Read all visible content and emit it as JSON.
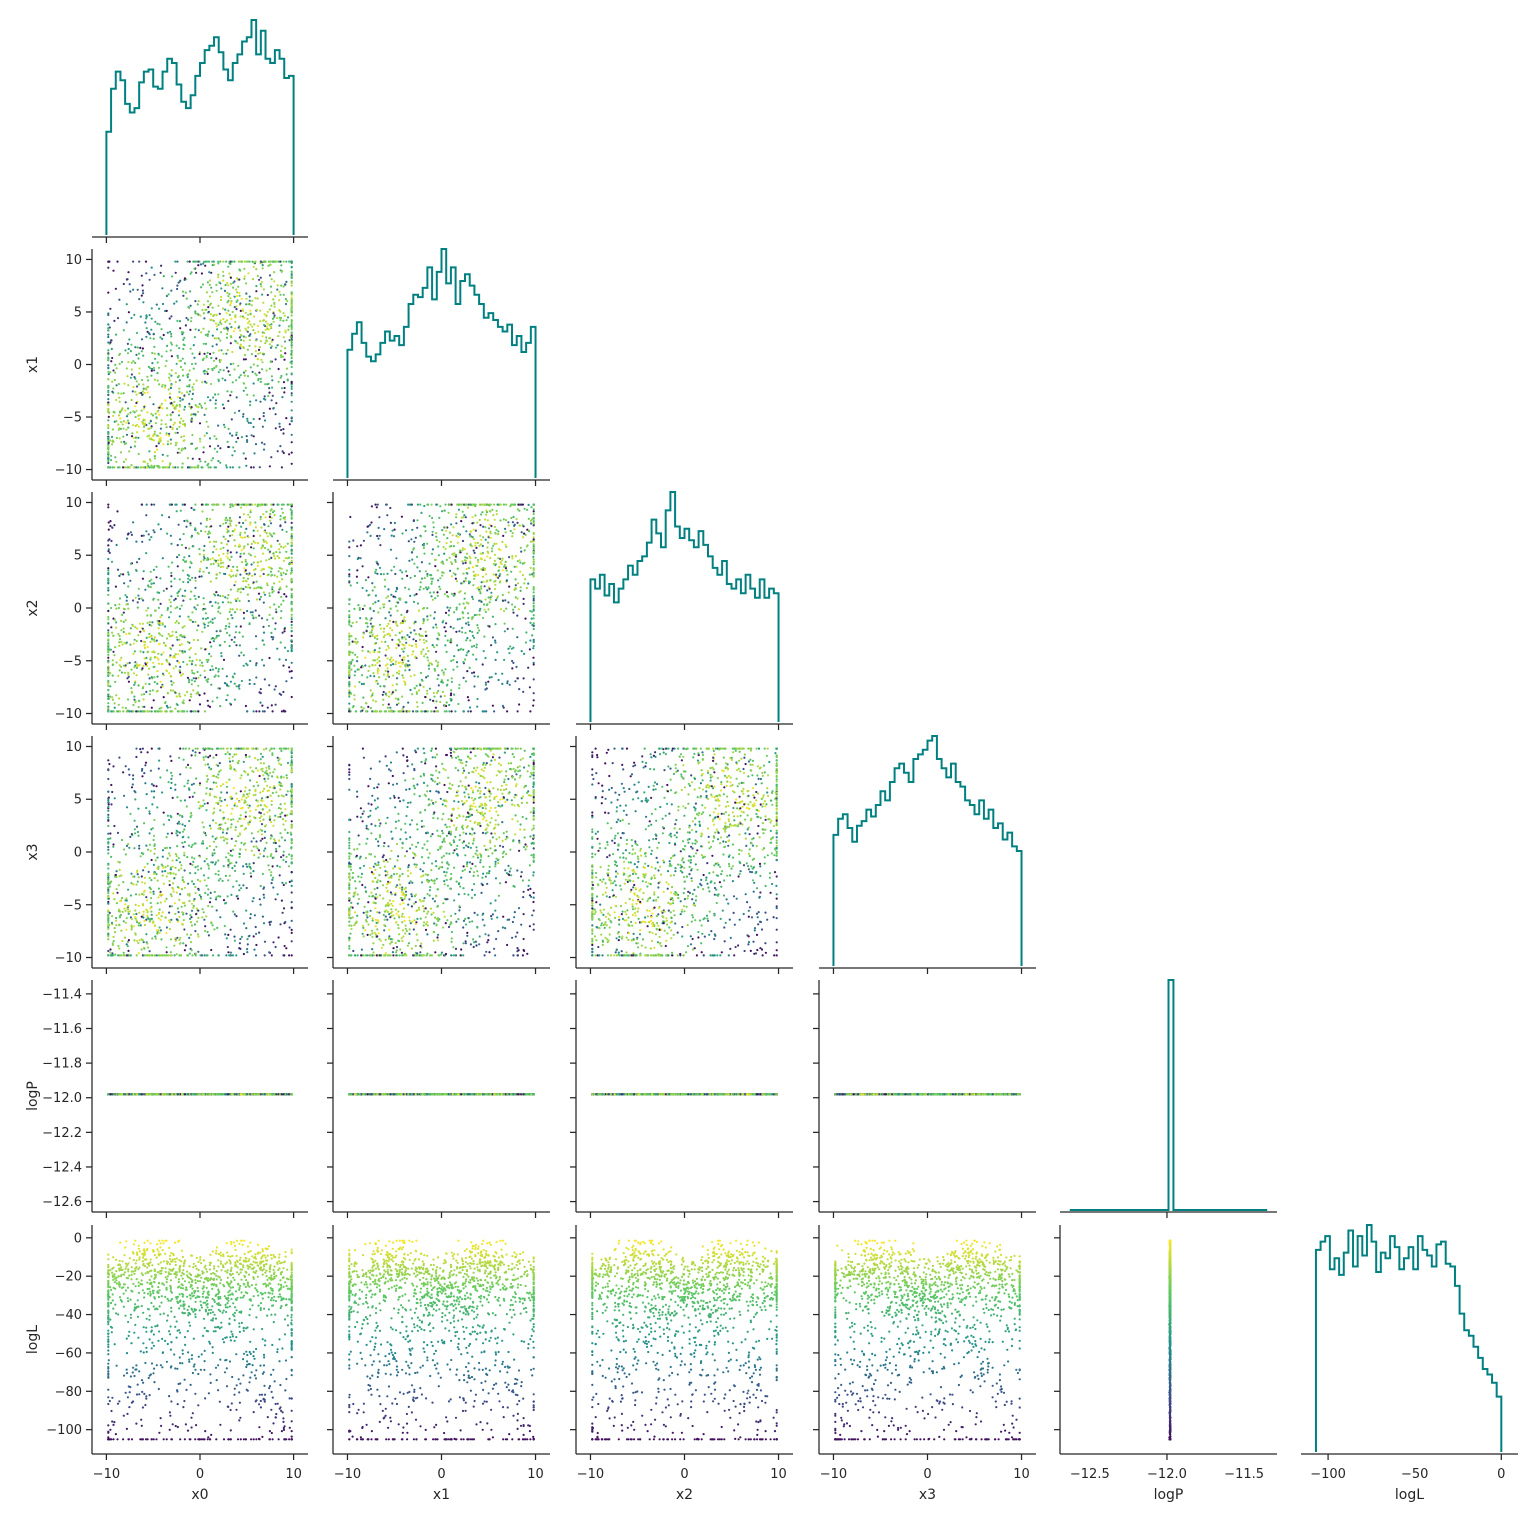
{
  "chart_data": {
    "type": "scatter",
    "plot_kind": "corner / pair plot (lower triangle scatter, diagonal step histograms)",
    "title": "",
    "variables": [
      "x0",
      "x1",
      "x2",
      "x3",
      "logP",
      "logL"
    ],
    "axis_labels": {
      "x": [
        "x0",
        "x1",
        "x2",
        "x3",
        "logP",
        "logL"
      ],
      "y": [
        "",
        "x1",
        "x2",
        "x3",
        "logP",
        "logL"
      ]
    },
    "ranges": {
      "x0": [
        -10.5,
        10.5
      ],
      "x1": [
        -10.5,
        10.5
      ],
      "x2": [
        -10.5,
        10.5
      ],
      "x3": [
        -10.5,
        10.5
      ],
      "logP": [
        -12.63,
        -11.35
      ],
      "logL": [
        -110,
        4
      ]
    },
    "ticks": {
      "x0": [
        -10,
        -5,
        0,
        5,
        10
      ],
      "x1": [
        -10,
        -5,
        0,
        5,
        10
      ],
      "x2": [
        -10,
        -5,
        0,
        5,
        10
      ],
      "x3": [
        -10,
        -5,
        0,
        5,
        10
      ],
      "logP": [
        -12.6,
        -12.4,
        -12.2,
        -12.0,
        -11.8,
        -11.6,
        -11.4
      ],
      "logL": [
        -100,
        -80,
        -60,
        -40,
        -20,
        0
      ]
    },
    "tick_labels": {
      "x_bottom": {
        "x0": [
          "−10",
          "0",
          "10"
        ],
        "x1": [
          "−10",
          "0",
          "10"
        ],
        "x2": [
          "−10",
          "0",
          "10"
        ],
        "x3": [
          "−10",
          "0",
          "10"
        ],
        "logP": [
          "−12.5",
          "−12.0",
          "−11.5"
        ],
        "logL": [
          "−100",
          "−50",
          "0"
        ]
      },
      "y_left": {
        "x1": [
          "−10",
          "−5",
          "0",
          "5",
          "10"
        ],
        "x2": [
          "−10",
          "−5",
          "0",
          "5",
          "10"
        ],
        "x3": [
          "−10",
          "−5",
          "0",
          "5",
          "10"
        ],
        "logP": [
          "−12.6",
          "−12.4",
          "−12.2",
          "−12.0",
          "−11.8",
          "−11.6",
          "−11.4"
        ],
        "logL": [
          "−100",
          "−80",
          "−60",
          "−40",
          "−20",
          "0"
        ]
      }
    },
    "constant_logP": -11.98,
    "color_by": "logL",
    "colormap": "viridis",
    "colormap_stops": [
      "#440154",
      "#3b528b",
      "#21918c",
      "#5ec962",
      "#fde725"
    ],
    "hist_color": "#008080",
    "histograms": {
      "x0": {
        "range": [
          -10,
          10
        ],
        "bins": 40,
        "counts": [
          48,
          68,
          76,
          72,
          61,
          57,
          59,
          71,
          76,
          77,
          69,
          68,
          76,
          82,
          80,
          70,
          62,
          59,
          65,
          74,
          80,
          86,
          88,
          92,
          85,
          77,
          72,
          80,
          84,
          90,
          92,
          100,
          84,
          95,
          82,
          80,
          86,
          82,
          73,
          74
        ]
      },
      "x1": {
        "range": [
          -10,
          10
        ],
        "bins": 40,
        "counts": [
          56,
          63,
          68,
          59,
          53,
          51,
          54,
          59,
          64,
          60,
          62,
          58,
          66,
          76,
          80,
          79,
          83,
          92,
          78,
          90,
          100,
          85,
          92,
          76,
          86,
          89,
          84,
          80,
          76,
          70,
          72,
          69,
          66,
          64,
          67,
          58,
          62,
          55,
          59,
          66
        ]
      },
      "x2": {
        "range": [
          -10,
          10
        ],
        "bins": 40,
        "counts": [
          62,
          58,
          64,
          55,
          60,
          52,
          58,
          62,
          68,
          64,
          70,
          72,
          78,
          88,
          82,
          76,
          92,
          100,
          85,
          80,
          84,
          79,
          76,
          83,
          77,
          72,
          67,
          64,
          70,
          60,
          58,
          62,
          56,
          64,
          58,
          54,
          62,
          54,
          58,
          56
        ]
      },
      "x3": {
        "range": [
          -10,
          10
        ],
        "bins": 40,
        "counts": [
          57,
          64,
          66,
          60,
          54,
          61,
          63,
          68,
          65,
          70,
          76,
          72,
          80,
          86,
          88,
          84,
          80,
          90,
          92,
          94,
          98,
          100,
          90,
          86,
          82,
          88,
          80,
          78,
          72,
          70,
          66,
          72,
          64,
          68,
          60,
          62,
          55,
          58,
          52,
          50
        ]
      },
      "logP": {
        "range": [
          -12.63,
          -11.35
        ],
        "bins": 40,
        "counts": [
          0,
          0,
          0,
          0,
          0,
          0,
          0,
          0,
          0,
          0,
          0,
          0,
          0,
          0,
          0,
          0,
          0,
          0,
          0,
          0,
          100,
          0,
          0,
          0,
          0,
          0,
          0,
          0,
          0,
          0,
          0,
          0,
          0,
          0,
          0,
          0,
          0,
          0,
          0,
          0
        ]
      },
      "logL": {
        "range": [
          -107,
          0
        ],
        "bins": 40,
        "counts": [
          73,
          76,
          78,
          66,
          70,
          64,
          72,
          80,
          67,
          78,
          71,
          82,
          76,
          65,
          72,
          70,
          78,
          74,
          66,
          70,
          74,
          66,
          78,
          73,
          71,
          67,
          75,
          76,
          68,
          67,
          60,
          50,
          44,
          42,
          38,
          34,
          30,
          28,
          25,
          20
        ]
      }
    },
    "scatter_panels": [
      {
        "x": "x0",
        "y": "x1"
      },
      {
        "x": "x0",
        "y": "x2"
      },
      {
        "x": "x1",
        "y": "x2"
      },
      {
        "x": "x0",
        "y": "x3"
      },
      {
        "x": "x1",
        "y": "x3"
      },
      {
        "x": "x2",
        "y": "x3"
      },
      {
        "x": "x0",
        "y": "logP"
      },
      {
        "x": "x1",
        "y": "logP"
      },
      {
        "x": "x2",
        "y": "logP"
      },
      {
        "x": "x3",
        "y": "logP"
      },
      {
        "x": "x0",
        "y": "logL"
      },
      {
        "x": "x1",
        "y": "logL"
      },
      {
        "x": "x2",
        "y": "logL"
      },
      {
        "x": "x3",
        "y": "logL"
      },
      {
        "x": "logP",
        "y": "logL"
      }
    ],
    "grid": false,
    "legend": "none"
  }
}
